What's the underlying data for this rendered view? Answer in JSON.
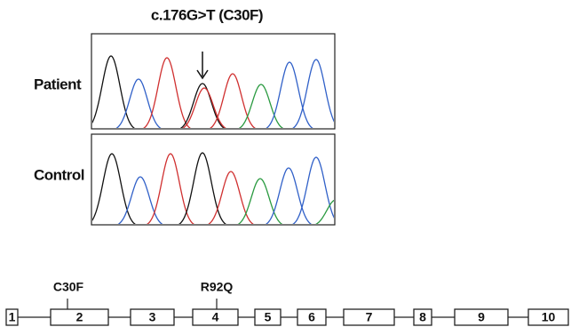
{
  "figure": {
    "title": "c.176G>T (C30F)",
    "panels": [
      {
        "label": "Patient"
      },
      {
        "label": "Control"
      }
    ]
  },
  "gene": {
    "variants": [
      {
        "label": "C30F"
      },
      {
        "label": "R92Q"
      }
    ],
    "exons": [
      {
        "label": "1"
      },
      {
        "label": "2"
      },
      {
        "label": "3"
      },
      {
        "label": "4"
      },
      {
        "label": "5"
      },
      {
        "label": "6"
      },
      {
        "label": "7"
      },
      {
        "label": "8"
      },
      {
        "label": "9"
      },
      {
        "label": "10"
      }
    ]
  }
}
